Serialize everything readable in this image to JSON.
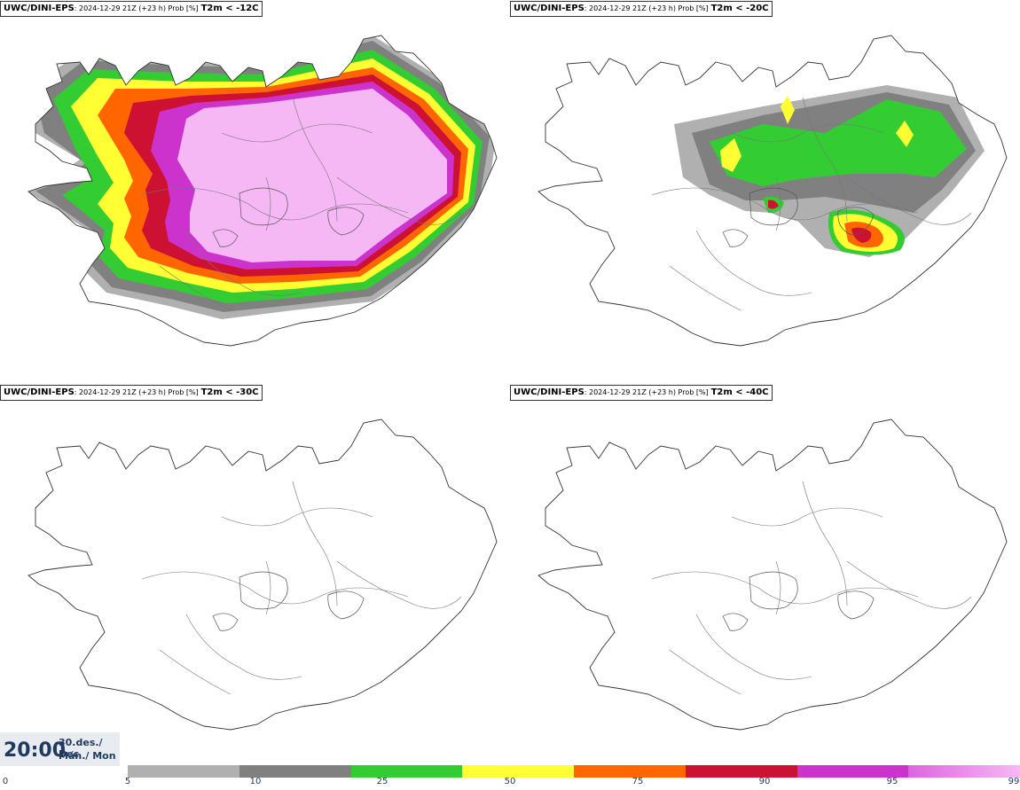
{
  "panels": [
    {
      "model": "UWC/DINI-EPS",
      "meta": ": 2024-12-29 21Z (+23 h) Prob [%]",
      "threshold": "T2m < -12C"
    },
    {
      "model": "UWC/DINI-EPS",
      "meta": ": 2024-12-29 21Z (+23 h) Prob [%]",
      "threshold": "T2m < -20C"
    },
    {
      "model": "UWC/DINI-EPS",
      "meta": ": 2024-12-29 21Z (+23 h) Prob [%]",
      "threshold": "T2m < -30C"
    },
    {
      "model": "UWC/DINI-EPS",
      "meta": ": 2024-12-29 21Z (+23 h) Prob [%]",
      "threshold": "T2m < -40C"
    }
  ],
  "time": {
    "clock": "20:00",
    "date_line1": "30.des./ Dec",
    "date_line2": "Mán./ Mon"
  },
  "colorbar": {
    "ticks": [
      "0",
      "5",
      "10",
      "25",
      "50",
      "75",
      "90",
      "95",
      "99"
    ],
    "colors": [
      "#b0b0b0",
      "#808080",
      "#33cc33",
      "#ffff33",
      "#ff6600",
      "#cc1133",
      "#cc33cc",
      "#f5b8f5"
    ]
  }
}
